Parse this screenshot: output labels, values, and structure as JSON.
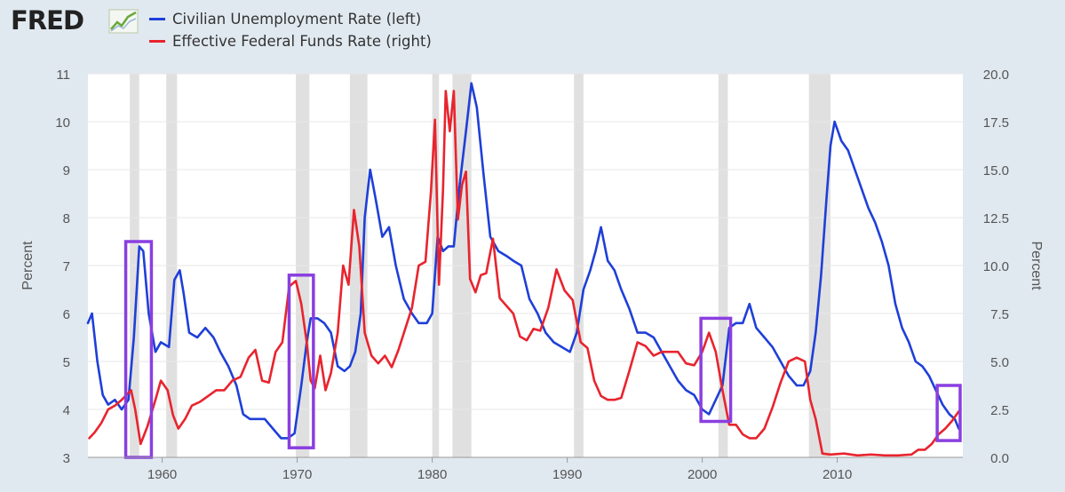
{
  "brand": {
    "logo_text": "FRED",
    "logo_icon": "trend-line-icon"
  },
  "legend": [
    {
      "label": "Civilian Unemployment Rate (left)",
      "color": "#1f3fd8"
    },
    {
      "label": "Effective Federal Funds Rate (right)",
      "color": "#e8242e"
    }
  ],
  "chart_data": {
    "type": "line",
    "title": "",
    "xlabel": "",
    "ylabel_left": "Percent",
    "ylabel_right": "Percent",
    "x_range": [
      1954.5,
      2019.3
    ],
    "x_ticks": [
      1960,
      1970,
      1980,
      1990,
      2000,
      2010
    ],
    "x_tick_labels": [
      "1960",
      "1970",
      "1980",
      "1990",
      "2000",
      "2010"
    ],
    "y_left_range": [
      3,
      11
    ],
    "y_left_ticks": [
      "3",
      "4",
      "5",
      "6",
      "7",
      "8",
      "9",
      "10",
      "11"
    ],
    "y_right_range": [
      0,
      20
    ],
    "y_right_ticks": [
      "0.0",
      "2.5",
      "5.0",
      "7.5",
      "10.0",
      "12.5",
      "15.0",
      "17.5",
      "20.0"
    ],
    "grid": true,
    "recessions": [
      [
        1957.6,
        1958.3
      ],
      [
        1960.3,
        1961.1
      ],
      [
        1969.9,
        1970.9
      ],
      [
        1973.9,
        1975.2
      ],
      [
        1980.0,
        1980.5
      ],
      [
        1981.5,
        1982.9
      ],
      [
        1990.5,
        1991.2
      ],
      [
        2001.2,
        2001.9
      ],
      [
        2007.9,
        2009.5
      ]
    ],
    "series": [
      {
        "name": "Civilian Unemployment Rate (left)",
        "axis": "left",
        "color": "#1f3fd8",
        "x": [
          1954.5,
          1954.8,
          1955.2,
          1955.6,
          1956.0,
          1956.5,
          1957.0,
          1957.5,
          1957.9,
          1958.3,
          1958.6,
          1959.0,
          1959.5,
          1959.9,
          1960.5,
          1960.9,
          1961.3,
          1961.6,
          1962.0,
          1962.6,
          1963.2,
          1963.8,
          1964.3,
          1964.9,
          1965.5,
          1966.0,
          1966.5,
          1967.0,
          1967.6,
          1968.2,
          1968.8,
          1969.3,
          1969.8,
          1970.3,
          1970.7,
          1971.0,
          1971.5,
          1972.0,
          1972.5,
          1973.0,
          1973.5,
          1973.9,
          1974.3,
          1974.7,
          1975.0,
          1975.4,
          1975.8,
          1976.3,
          1976.8,
          1977.3,
          1977.9,
          1978.5,
          1979.0,
          1979.6,
          1980.0,
          1980.4,
          1980.8,
          1981.2,
          1981.6,
          1982.0,
          1982.5,
          1982.9,
          1983.3,
          1983.8,
          1984.3,
          1984.9,
          1985.5,
          1986.0,
          1986.6,
          1987.2,
          1987.8,
          1988.4,
          1989.0,
          1989.6,
          1990.2,
          1990.7,
          1991.2,
          1991.7,
          1992.1,
          1992.5,
          1993.0,
          1993.5,
          1994.0,
          1994.6,
          1995.2,
          1995.8,
          1996.4,
          1997.0,
          1997.6,
          1998.2,
          1998.8,
          1999.4,
          2000.0,
          2000.5,
          2001.0,
          2001.5,
          2002.0,
          2002.5,
          2003.0,
          2003.5,
          2004.0,
          2004.6,
          2005.2,
          2005.8,
          2006.4,
          2007.0,
          2007.5,
          2008.0,
          2008.4,
          2008.8,
          2009.2,
          2009.5,
          2009.8,
          2010.3,
          2010.8,
          2011.3,
          2011.8,
          2012.3,
          2012.8,
          2013.3,
          2013.8,
          2014.3,
          2014.8,
          2015.3,
          2015.8,
          2016.3,
          2016.8,
          2017.3,
          2017.8,
          2018.3,
          2018.7,
          2019.0
        ],
        "values": [
          5.8,
          6.0,
          5.0,
          4.3,
          4.1,
          4.2,
          4.0,
          4.2,
          5.5,
          7.4,
          7.3,
          6.0,
          5.2,
          5.4,
          5.3,
          6.7,
          6.9,
          6.4,
          5.6,
          5.5,
          5.7,
          5.5,
          5.2,
          4.9,
          4.5,
          3.9,
          3.8,
          3.8,
          3.8,
          3.6,
          3.4,
          3.4,
          3.5,
          4.5,
          5.4,
          5.9,
          5.9,
          5.8,
          5.6,
          4.9,
          4.8,
          4.9,
          5.2,
          6.0,
          8.0,
          9.0,
          8.4,
          7.6,
          7.8,
          7.0,
          6.3,
          6.0,
          5.8,
          5.8,
          6.0,
          7.6,
          7.3,
          7.4,
          7.4,
          8.6,
          9.8,
          10.8,
          10.3,
          8.9,
          7.6,
          7.3,
          7.2,
          7.1,
          7.0,
          6.3,
          6.0,
          5.6,
          5.4,
          5.3,
          5.2,
          5.6,
          6.5,
          6.9,
          7.3,
          7.8,
          7.1,
          6.9,
          6.5,
          6.1,
          5.6,
          5.6,
          5.5,
          5.2,
          4.9,
          4.6,
          4.4,
          4.3,
          4.0,
          3.9,
          4.2,
          4.5,
          5.7,
          5.8,
          5.8,
          6.2,
          5.7,
          5.5,
          5.3,
          5.0,
          4.7,
          4.5,
          4.5,
          4.8,
          5.6,
          6.8,
          8.4,
          9.5,
          10.0,
          9.6,
          9.4,
          9.0,
          8.6,
          8.2,
          7.9,
          7.5,
          7.0,
          6.2,
          5.7,
          5.4,
          5.0,
          4.9,
          4.7,
          4.4,
          4.1,
          3.9,
          3.8,
          3.6
        ]
      },
      {
        "name": "Effective Federal Funds Rate (right)",
        "axis": "right",
        "color": "#e8242e",
        "x": [
          1954.6,
          1955.0,
          1955.5,
          1956.0,
          1956.5,
          1957.0,
          1957.7,
          1958.0,
          1958.4,
          1958.9,
          1959.5,
          1959.9,
          1960.4,
          1960.8,
          1961.2,
          1961.7,
          1962.2,
          1962.8,
          1963.4,
          1964.0,
          1964.6,
          1965.2,
          1965.8,
          1966.4,
          1966.9,
          1967.4,
          1967.9,
          1968.4,
          1968.9,
          1969.4,
          1969.9,
          1970.3,
          1970.7,
          1971.0,
          1971.3,
          1971.7,
          1972.1,
          1972.5,
          1973.0,
          1973.4,
          1973.8,
          1974.2,
          1974.6,
          1975.0,
          1975.5,
          1976.0,
          1976.5,
          1977.0,
          1977.5,
          1978.0,
          1978.5,
          1979.0,
          1979.5,
          1979.9,
          1980.2,
          1980.5,
          1980.8,
          1981.0,
          1981.3,
          1981.6,
          1981.9,
          1982.2,
          1982.5,
          1982.8,
          1983.2,
          1983.6,
          1984.0,
          1984.5,
          1985.0,
          1985.5,
          1986.0,
          1986.5,
          1987.0,
          1987.5,
          1988.0,
          1988.6,
          1989.2,
          1989.8,
          1990.4,
          1991.0,
          1991.5,
          1992.0,
          1992.5,
          1993.0,
          1993.5,
          1994.0,
          1994.6,
          1995.2,
          1995.8,
          1996.4,
          1997.0,
          1997.6,
          1998.2,
          1998.8,
          1999.4,
          2000.0,
          2000.5,
          2001.0,
          2001.5,
          2002.0,
          2002.5,
          2003.0,
          2003.5,
          2004.0,
          2004.6,
          2005.2,
          2005.8,
          2006.4,
          2007.0,
          2007.6,
          2008.0,
          2008.4,
          2008.9,
          2009.5,
          2010.5,
          2011.5,
          2012.5,
          2013.5,
          2014.5,
          2015.5,
          2016.0,
          2016.5,
          2017.0,
          2017.5,
          2018.0,
          2018.5,
          2019.0
        ],
        "values": [
          1.0,
          1.3,
          1.8,
          2.5,
          2.7,
          3.0,
          3.5,
          2.5,
          0.7,
          1.6,
          3.0,
          4.0,
          3.5,
          2.2,
          1.5,
          2.0,
          2.7,
          2.9,
          3.2,
          3.5,
          3.5,
          4.0,
          4.2,
          5.2,
          5.6,
          4.0,
          3.9,
          5.5,
          6.0,
          8.9,
          9.2,
          8.0,
          6.0,
          4.0,
          3.6,
          5.3,
          3.5,
          4.4,
          6.5,
          10.0,
          9.0,
          12.9,
          11.0,
          6.5,
          5.3,
          4.9,
          5.3,
          4.7,
          5.6,
          6.7,
          7.8,
          10.0,
          10.2,
          13.8,
          17.6,
          9.0,
          14.0,
          19.1,
          17.0,
          19.1,
          12.4,
          14.2,
          14.9,
          9.3,
          8.6,
          9.5,
          9.6,
          11.4,
          8.3,
          7.9,
          7.5,
          6.3,
          6.1,
          6.7,
          6.6,
          7.8,
          9.8,
          8.7,
          8.2,
          6.0,
          5.7,
          4.0,
          3.2,
          3.0,
          3.0,
          3.1,
          4.5,
          6.0,
          5.8,
          5.3,
          5.5,
          5.5,
          5.5,
          4.9,
          4.8,
          5.5,
          6.5,
          5.5,
          3.5,
          1.7,
          1.7,
          1.2,
          1.0,
          1.0,
          1.5,
          2.6,
          3.9,
          5.0,
          5.2,
          5.0,
          3.0,
          2.0,
          0.2,
          0.15,
          0.2,
          0.1,
          0.15,
          0.1,
          0.1,
          0.15,
          0.4,
          0.4,
          0.7,
          1.2,
          1.5,
          1.9,
          2.4
        ]
      }
    ],
    "annotations": [
      {
        "shape": "box",
        "color": "#8a3fe0",
        "x": [
          1957.3,
          1959.2
        ],
        "y_left": [
          3.0,
          7.5
        ]
      },
      {
        "shape": "box",
        "color": "#8a3fe0",
        "x": [
          1969.4,
          1971.2
        ],
        "y_left": [
          3.2,
          6.8
        ]
      },
      {
        "shape": "box",
        "color": "#8a3fe0",
        "x": [
          1999.9,
          2002.1
        ],
        "y_left": [
          3.75,
          5.9
        ]
      },
      {
        "shape": "box",
        "color": "#8a3fe0",
        "x": [
          2017.4,
          2019.1
        ],
        "y_left": [
          3.35,
          4.5
        ]
      }
    ]
  }
}
